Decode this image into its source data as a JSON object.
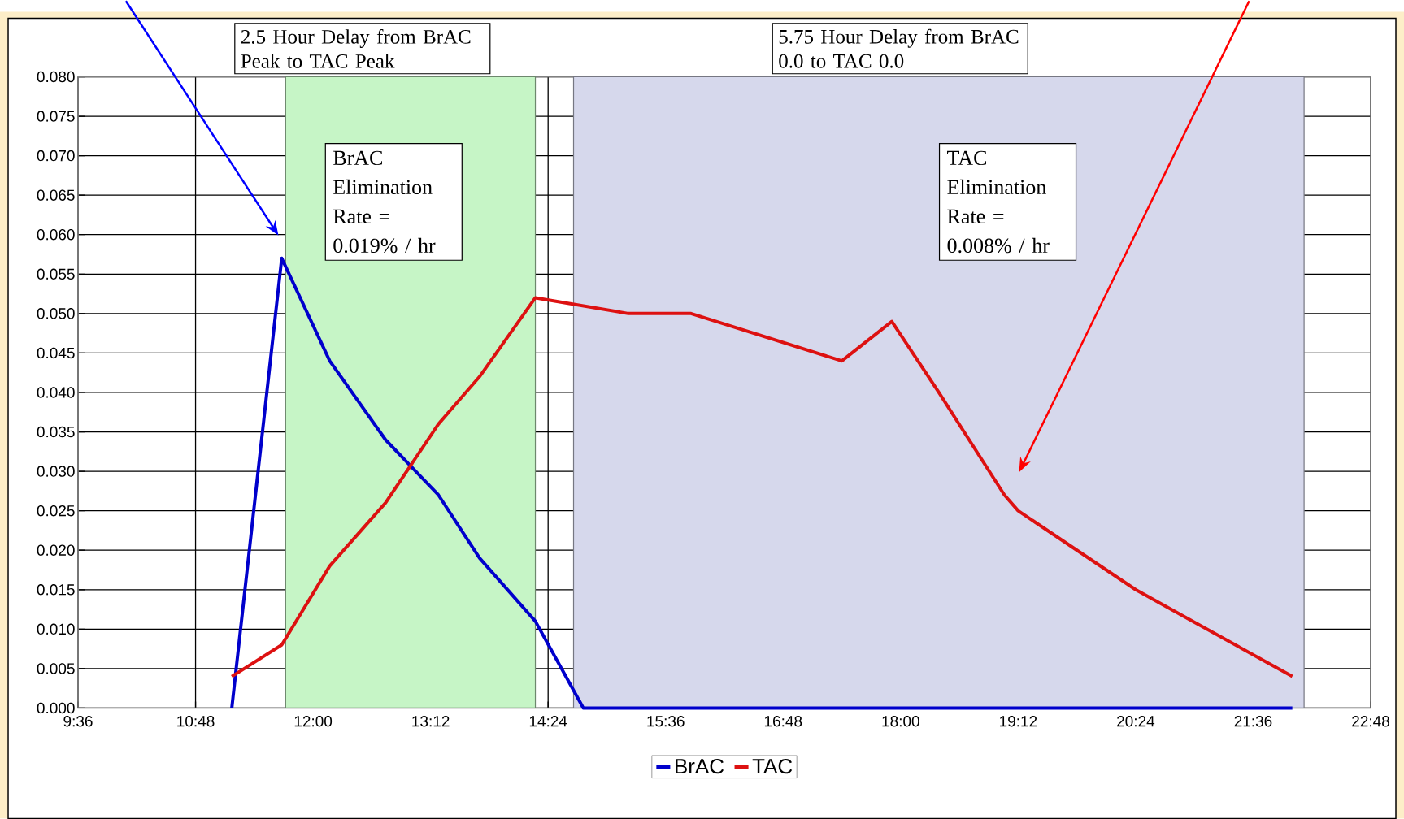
{
  "chart_data": {
    "type": "line",
    "series": [
      {
        "name": "BrAC",
        "color": "#0000cc",
        "x": [
          11.17,
          11.68,
          12.17,
          12.74,
          13.28,
          13.7,
          14.27,
          14.76,
          22.0
        ],
        "values": [
          0,
          0.057,
          0.044,
          0.034,
          0.027,
          0.019,
          0.011,
          0,
          0
        ]
      },
      {
        "name": "TAC",
        "color": "#dd1111",
        "x": [
          11.17,
          11.68,
          12.17,
          12.74,
          13.28,
          13.7,
          14.27,
          15.22,
          15.86,
          17.4,
          17.91,
          18.39,
          19.06,
          19.2,
          20.4,
          22.0
        ],
        "values": [
          0.004,
          0.008,
          0.018,
          0.026,
          0.036,
          0.042,
          0.052,
          0.05,
          0.05,
          0.044,
          0.049,
          0.04,
          0.027,
          0.025,
          0.015,
          0.004
        ]
      }
    ],
    "xlim": [
      9.6,
      22.8
    ],
    "xticks": [
      {
        "value": 9.6,
        "label": "9:36"
      },
      {
        "value": 10.8,
        "label": "10:48"
      },
      {
        "value": 12.0,
        "label": "12:00"
      },
      {
        "value": 13.2,
        "label": "13:12"
      },
      {
        "value": 14.4,
        "label": "14:24"
      },
      {
        "value": 15.6,
        "label": "15:36"
      },
      {
        "value": 16.8,
        "label": "16:48"
      },
      {
        "value": 18.0,
        "label": "18:00"
      },
      {
        "value": 19.2,
        "label": "19:12"
      },
      {
        "value": 20.4,
        "label": "20:24"
      },
      {
        "value": 21.6,
        "label": "21:36"
      },
      {
        "value": 22.8,
        "label": "22:48"
      }
    ],
    "ylim": [
      0,
      0.08
    ],
    "yticks": [
      {
        "value": 0,
        "label": "0.000"
      },
      {
        "value": 0.005,
        "label": "0.005"
      },
      {
        "value": 0.01,
        "label": "0.010"
      },
      {
        "value": 0.015,
        "label": "0.015"
      },
      {
        "value": 0.02,
        "label": "0.020"
      },
      {
        "value": 0.025,
        "label": "0.025"
      },
      {
        "value": 0.03,
        "label": "0.030"
      },
      {
        "value": 0.035,
        "label": "0.035"
      },
      {
        "value": 0.04,
        "label": "0.040"
      },
      {
        "value": 0.045,
        "label": "0.045"
      },
      {
        "value": 0.05,
        "label": "0.050"
      },
      {
        "value": 0.055,
        "label": "0.055"
      },
      {
        "value": 0.06,
        "label": "0.060"
      },
      {
        "value": 0.065,
        "label": "0.065"
      },
      {
        "value": 0.07,
        "label": "0.070"
      },
      {
        "value": 0.075,
        "label": "0.075"
      },
      {
        "value": 0.08,
        "label": "0.080"
      }
    ],
    "bands": [
      {
        "axis": "x",
        "from": 11.72,
        "to": 14.27,
        "color": "#c6f5c6",
        "label": "2.5 Hour Delay from BrAC Peak to TAC Peak"
      },
      {
        "axis": "x",
        "from": 14.66,
        "to": 22.12,
        "color": "#d6d8ec",
        "label": "5.75 Hour Delay from BrAC 0.0 to TAC 0.0"
      }
    ],
    "annotations": [
      "BrAC Elimination Rate = 0.019% / hr",
      "TAC Elimination Rate = 0.008% / hr"
    ],
    "grid": true,
    "legend": "bottom",
    "marker": "none",
    "line_style": "solid"
  }
}
